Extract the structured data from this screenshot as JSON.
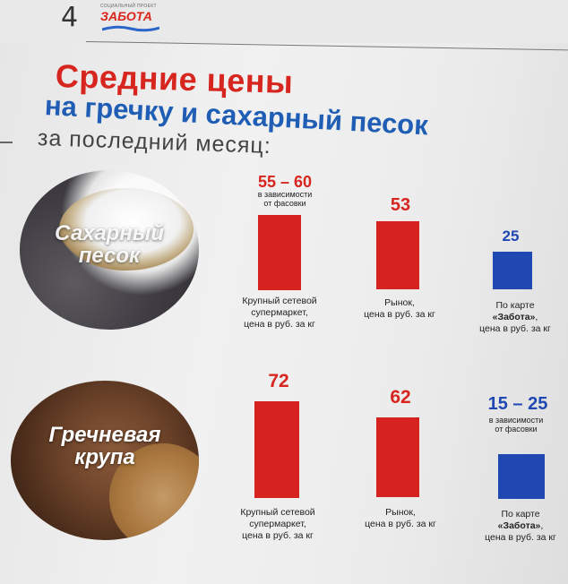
{
  "header": {
    "page_number": "4",
    "logo_small": "СОЦИАЛЬНЫЙ ПРОЕКТ",
    "logo_main": "ЗАБОТА"
  },
  "title": {
    "line1": "Средние цены",
    "line2": "на гречку и сахарный песок",
    "line3": "за последний месяц:"
  },
  "colors": {
    "red": "#d7231f",
    "blue": "#1f48b2",
    "title_red": "#d7261f",
    "title_blue": "#1f5eb4"
  },
  "products": [
    {
      "label_line1": "Сахарный",
      "label_line2": "песок",
      "prices": [
        {
          "value": "55 – 60",
          "note_line1": "в зависимости",
          "note_line2": "от фасовки",
          "cap_line1": "Крупный сетевой",
          "cap_line2": "супермаркет,",
          "cap_line3": "цена в руб. за кг"
        },
        {
          "value": "53",
          "cap_line1": "Рынок,",
          "cap_line2": "цена в руб. за кг"
        },
        {
          "value": "25",
          "cap_line1": "По карте",
          "cap_line2": "«Забота»",
          "cap_line2_suffix": ",",
          "cap_line3": "цена в руб. за кг"
        }
      ]
    },
    {
      "label_line1": "Гречневая",
      "label_line2": "крупа",
      "prices": [
        {
          "value": "72",
          "cap_line1": "Крупный сетевой",
          "cap_line2": "супермаркет,",
          "cap_line3": "цена в руб. за кг"
        },
        {
          "value": "62",
          "cap_line1": "Рынок,",
          "cap_line2": "цена в руб. за кг"
        },
        {
          "value": "15 – 25",
          "note_line1": "в зависимости",
          "note_line2": "от фасовки",
          "cap_line1": "По карте",
          "cap_line2": "«Забота»",
          "cap_line2_suffix": ",",
          "cap_line3": "цена в руб. за кг"
        }
      ]
    }
  ]
}
